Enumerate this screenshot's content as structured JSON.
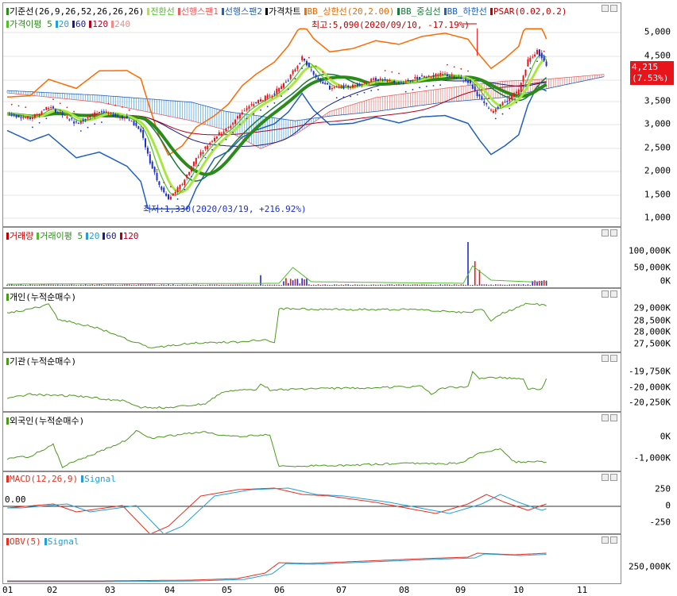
{
  "colors": {
    "up": "#e8141c",
    "down": "#1c2fd0",
    "ma5": "#4fbf2a",
    "ma20": "#23a0d8",
    "ma60": "#1c1c8c",
    "ma120": "#b0001c",
    "ma240": "#f08c8c",
    "bb": "#ff6a00",
    "bbmid": "#1a7a3a",
    "cloud_up": "#e8a0a0",
    "cloud_dn": "#7ab8e8",
    "kijun": "#2a8a1a",
    "tenkan": "#a8e840",
    "series": "#4a9a1a"
  },
  "panes": {
    "price": {
      "legend": [
        {
          "text": "기준선(26,9,26,52,26,26,26)",
          "color": "#000",
          "mk": "#2a8a1a"
        },
        {
          "text": "전환선",
          "color": "#4fbf2a",
          "mk": "#a8e840"
        },
        {
          "text": "선행스팬1",
          "color": "#e86060",
          "mk": "#e86060"
        },
        {
          "text": "선행스팬2",
          "color": "#2060c0",
          "mk": "#2060c0"
        },
        {
          "text": "가격차트",
          "color": "#000",
          "mk": "#000"
        },
        {
          "text": "BB_상한선(20,2.00)",
          "color": "#e86a00",
          "mk": "#ff6a00"
        },
        {
          "text": "BB_중심선",
          "color": "#1a7a3a",
          "mk": "#1a7a3a"
        },
        {
          "text": "BB_하한선",
          "color": "#2060c0",
          "mk": "#2060c0"
        },
        {
          "text": "PSAR(0.02,0.2)",
          "color": "#c00000",
          "mk": "#c00000"
        }
      ],
      "legend2": [
        {
          "text": "가격이평 5",
          "color": "#2a8a1a",
          "mk": "#4fbf2a"
        },
        {
          "text": "20",
          "color": "#23a0d8",
          "mk": "#23a0d8"
        },
        {
          "text": "60",
          "color": "#1c1c8c",
          "mk": "#1c1c8c"
        },
        {
          "text": "120",
          "color": "#b0001c",
          "mk": "#b0001c"
        },
        {
          "text": "240",
          "color": "#f08c8c",
          "mk": "#f08c8c"
        }
      ],
      "ticks": [
        "5,000",
        "4,500",
        "4,000",
        "3,500",
        "3,000",
        "2,500",
        "2,000",
        "1,500",
        "1,000"
      ],
      "high_label": "최고:5,090(2020/09/10, -17.19%)",
      "low_label": "최저:1,330(2020/03/19, +216.92%)",
      "current_price": "4,215",
      "current_change": "(7.53%)"
    },
    "volume": {
      "legend": [
        {
          "text": "거래량",
          "color": "#c00000",
          "mk": "#c00000"
        },
        {
          "text": "거래이평 5",
          "color": "#2a8a1a",
          "mk": "#4fbf2a"
        },
        {
          "text": "20",
          "color": "#23a0d8",
          "mk": "#23a0d8"
        },
        {
          "text": "60",
          "color": "#1c1c8c",
          "mk": "#1c1c8c"
        },
        {
          "text": "120",
          "color": "#b0001c",
          "mk": "#b0001c"
        }
      ],
      "ticks": [
        "100,000K",
        "50,000K",
        "0K"
      ]
    },
    "individual": {
      "legend": [
        {
          "text": "개인(누적순매수)",
          "color": "#000",
          "mk": "#4a9a1a"
        }
      ],
      "ticks": [
        "29,000K",
        "28,500K",
        "28,000K",
        "27,500K"
      ]
    },
    "institution": {
      "legend": [
        {
          "text": "기관(누적순매수)",
          "color": "#000",
          "mk": "#4a9a1a"
        }
      ],
      "ticks": [
        "-19,750K",
        "-20,000K",
        "-20,250K"
      ]
    },
    "foreign": {
      "legend": [
        {
          "text": "외국인(누적순매수)",
          "color": "#000",
          "mk": "#4a9a1a"
        }
      ],
      "ticks": [
        "0K",
        "-1,000K"
      ]
    },
    "macd": {
      "legend": [
        {
          "text": "MACD(12,26,9)",
          "color": "#e83020",
          "mk": "#e83020"
        },
        {
          "text": "Signal",
          "color": "#23a0d8",
          "mk": "#23a0d8"
        }
      ],
      "zero_label": "0.00",
      "ticks": [
        "250",
        "0",
        "-250"
      ]
    },
    "obv": {
      "legend": [
        {
          "text": "OBV(5)",
          "color": "#e83020",
          "mk": "#e83020"
        },
        {
          "text": "Signal",
          "color": "#23a0d8",
          "mk": "#23a0d8"
        }
      ],
      "ticks": [
        "250,000K"
      ]
    }
  },
  "x_axis": [
    "01",
    "02",
    "03",
    "04",
    "05",
    "06",
    "07",
    "08",
    "09",
    "10",
    "11"
  ]
}
